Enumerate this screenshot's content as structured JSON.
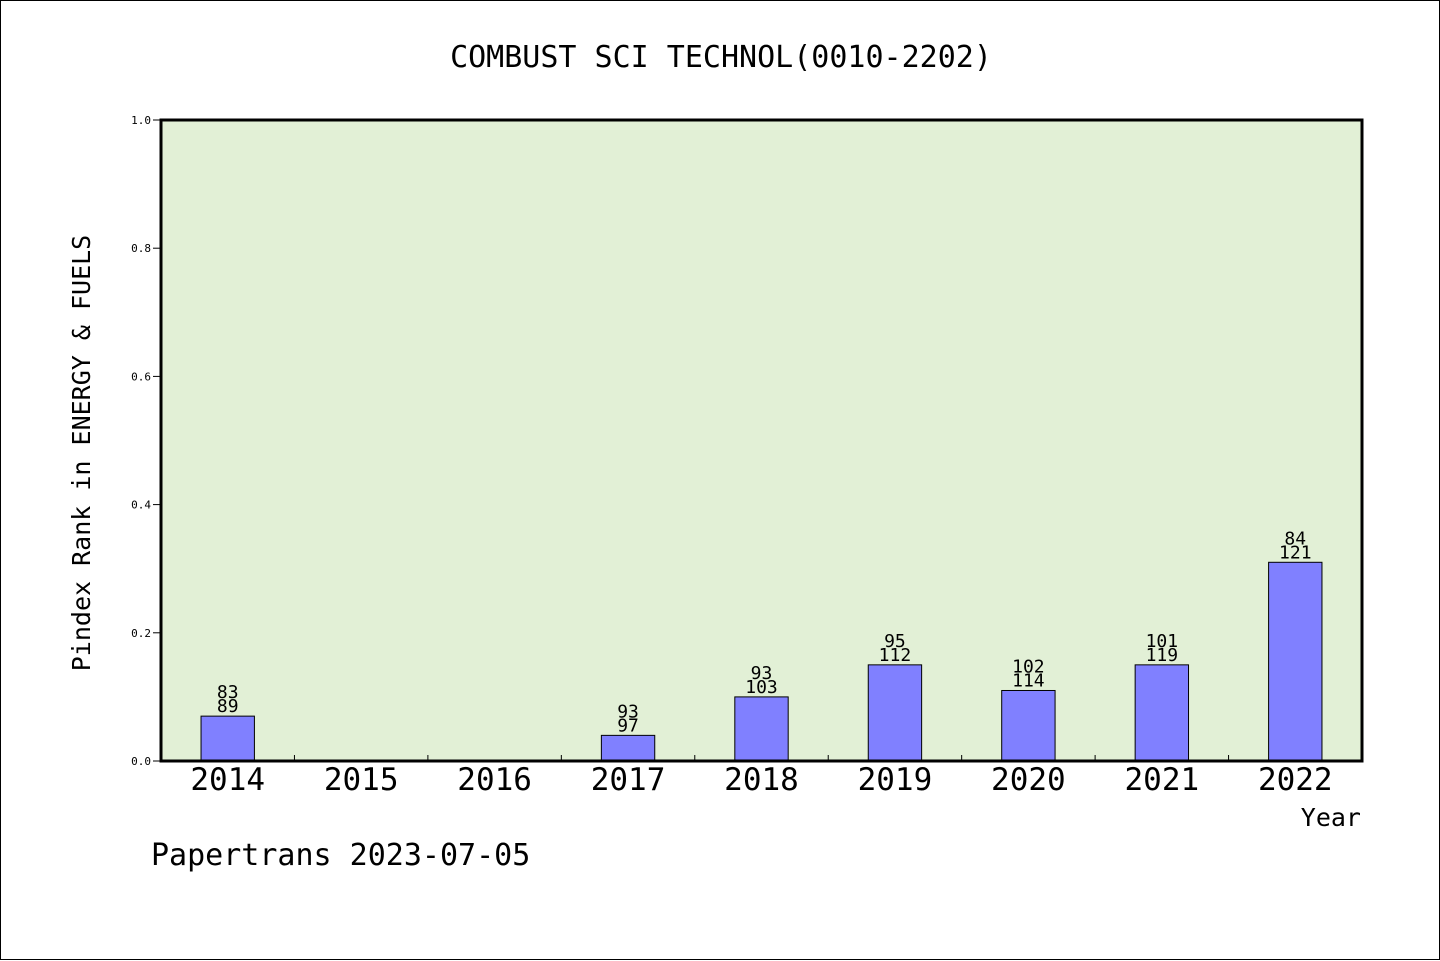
{
  "chart_data": {
    "type": "bar",
    "title": "COMBUST SCI TECHNOL(0010-2202)",
    "xlabel": "Year",
    "ylabel": "Pindex Rank in ENERGY & FUELS",
    "ylim": [
      0,
      1.0
    ],
    "yticks": [
      "0.0",
      "0.2",
      "0.4",
      "0.6",
      "0.8",
      "1.0"
    ],
    "categories": [
      "2014",
      "2015",
      "2016",
      "2017",
      "2018",
      "2019",
      "2020",
      "2021",
      "2022"
    ],
    "values": [
      0.07,
      null,
      null,
      0.04,
      0.1,
      0.15,
      0.11,
      0.15,
      0.31
    ],
    "labels_top": [
      "83",
      "",
      "",
      "93",
      "93",
      "95",
      "102",
      "101",
      "84"
    ],
    "labels_bottom": [
      "89",
      "",
      "",
      "97",
      "103",
      "112",
      "114",
      "119",
      "121"
    ],
    "grid": false,
    "colors": {
      "plot_background": "#e2f0d6",
      "bar_fill": "#8080ff",
      "bar_stroke": "#000000"
    }
  },
  "footer": {
    "text": "Papertrans 2023-07-05"
  }
}
